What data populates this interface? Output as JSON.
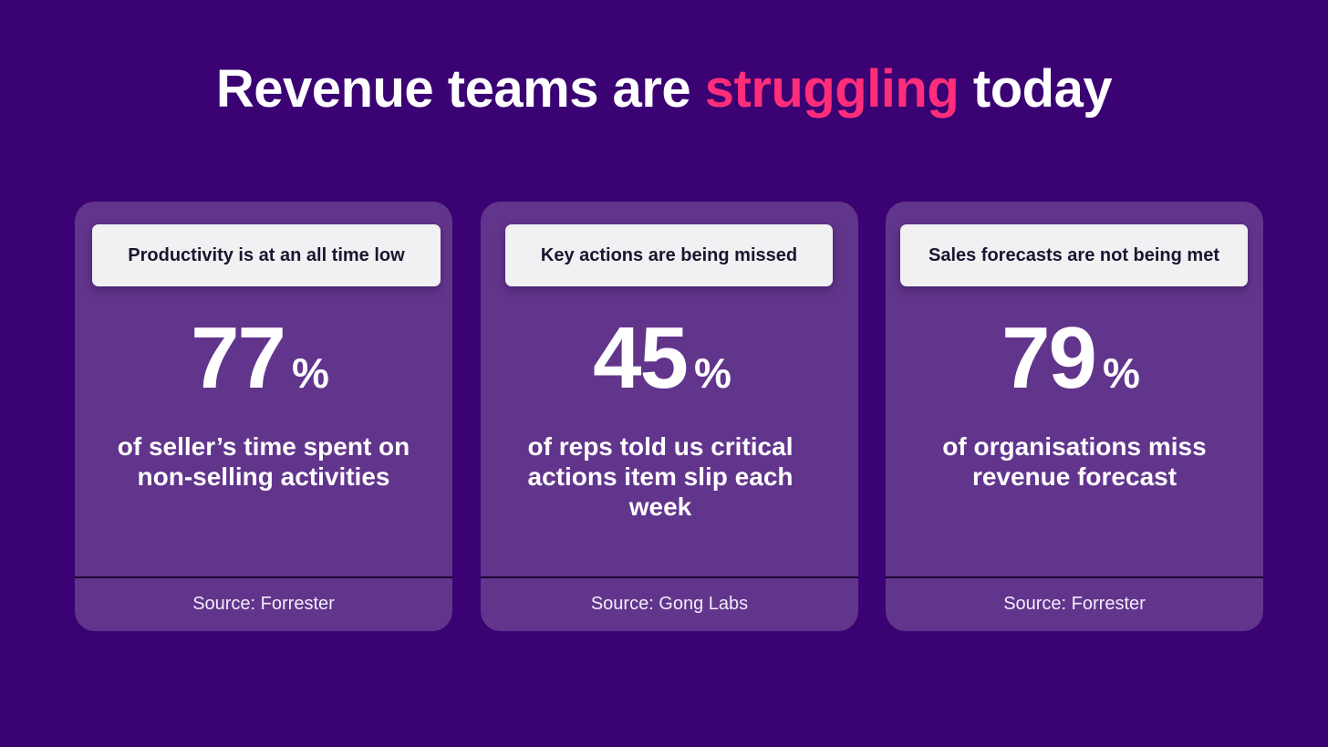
{
  "title": {
    "part1": "Revenue teams are ",
    "accent": "struggling",
    "part2": " today"
  },
  "colors": {
    "background": "#3a0273",
    "card": "#62358c",
    "accent": "#ff2d7a",
    "pill": "#f1f0f2"
  },
  "cards": [
    {
      "heading": "Productivity is at an all time low",
      "value": "77",
      "unit": "%",
      "description": "of seller’s time spent on non-selling activities",
      "source": "Source: Forrester"
    },
    {
      "heading": "Key actions are being missed",
      "value": "45",
      "unit": "%",
      "description": "of reps told us critical actions item slip each week",
      "source": "Source: Gong Labs"
    },
    {
      "heading": "Sales forecasts are not being met",
      "value": "79",
      "unit": "%",
      "description": "of organisations miss revenue forecast",
      "source": "Source: Forrester"
    }
  ]
}
